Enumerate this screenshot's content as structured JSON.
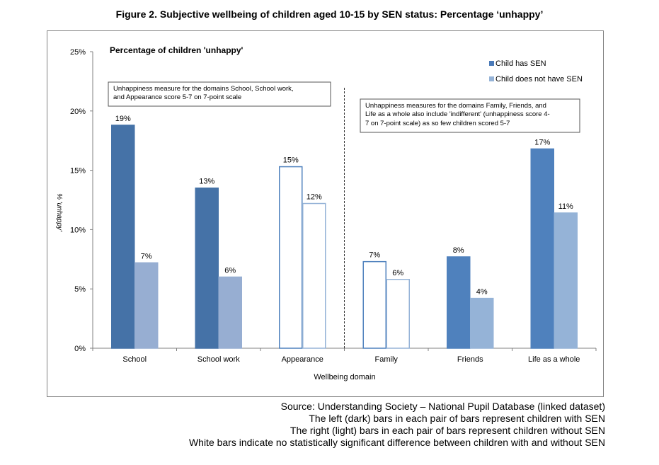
{
  "figure_title": "Figure 2. Subjective wellbeing of children aged 10-15 by SEN status: Percentage ‘unhappy’",
  "notes": [
    "Source: Understanding Society – National Pupil Database (linked dataset)",
    "The left (dark) bars in each pair of bars represent children with SEN",
    "The right (light) bars in each pair of bars represent children without SEN",
    "White bars indicate no statistically significant difference between children with and without SEN"
  ],
  "chart_data": {
    "type": "bar",
    "title": "Percentage of children 'unhappy'",
    "xlabel": "Wellbeing domain",
    "ylabel": "% 'unhappy'",
    "ylim": [
      0,
      25
    ],
    "yticks": [
      0,
      5,
      10,
      15,
      20,
      25
    ],
    "ytick_labels": [
      "0%",
      "5%",
      "10%",
      "15%",
      "20%",
      "25%"
    ],
    "categories": [
      "School",
      "School work",
      "Appearance",
      "Family",
      "Friends",
      "Life as a whole"
    ],
    "series": [
      {
        "name": "Child has SEN",
        "values": [
          18.8,
          13.5,
          15.3,
          7.3,
          7.7,
          16.8
        ],
        "labels": [
          "19%",
          "13%",
          "15%",
          "7%",
          "8%",
          "17%"
        ]
      },
      {
        "name": "Child does not have SEN",
        "values": [
          7.2,
          6.0,
          12.2,
          5.8,
          4.2,
          11.4
        ],
        "labels": [
          "7%",
          "6%",
          "12%",
          "6%",
          "4%",
          "11%"
        ]
      }
    ],
    "significant": [
      true,
      true,
      false,
      false,
      true,
      true
    ],
    "colors": {
      "group1_sen": "#4572a7",
      "group1_no_sen": "#97aed2",
      "group2_sen": "#4f81bd",
      "group2_no_sen": "#95b3d7",
      "not_significant_fill": "#ffffff",
      "legend_sen": "#4a7ab8",
      "legend_no_sen": "#95b3d7"
    },
    "legend": {
      "placement": "top-right",
      "items": [
        "Child has SEN",
        "Child does not have SEN"
      ]
    },
    "grid": false,
    "annotations": [
      "Unhappiness measure  for the domains School, School work, and Appearance score 5-7  on 7-point scale",
      "Unhappiness measures  for the domains Family, Friends, and Life as a whole  also include 'indifferent' (unhappiness score 4-7 on 7-point scale) as so few children scored 5-7"
    ]
  }
}
